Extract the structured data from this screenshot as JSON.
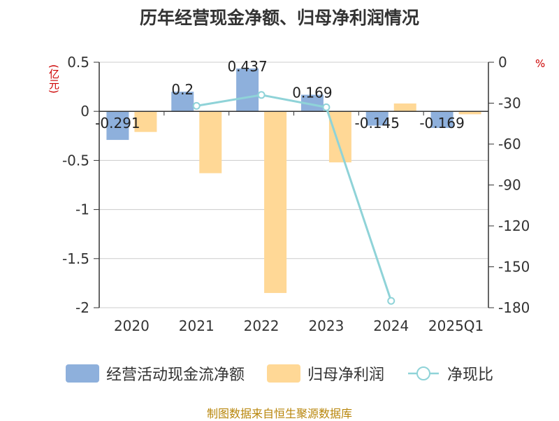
{
  "title": "历年经营现金净额、归母净利润情况",
  "source": "制图数据来自恒生聚源数据库",
  "chart_data": {
    "type": "bar",
    "title": "历年经营现金净额、归母净利润情况",
    "categories": [
      "2020",
      "2021",
      "2022",
      "2023",
      "2024",
      "2025Q1"
    ],
    "left_axis": {
      "unit": "(亿元)",
      "ylim": [
        -2,
        0.5
      ],
      "ticks": [
        0.5,
        0,
        -0.5,
        -1,
        -1.5,
        -2
      ],
      "tick_labels": [
        "0.5",
        "0",
        "-0.5",
        "-1",
        "-1.5",
        "-2"
      ]
    },
    "right_axis": {
      "unit": "%",
      "ylim": [
        -180,
        0
      ],
      "ticks": [
        0,
        -30,
        -60,
        -90,
        -120,
        -150,
        -180
      ],
      "tick_labels": [
        "0",
        "-30",
        "-60",
        "-90",
        "-120",
        "-150",
        "-180"
      ]
    },
    "grid": true,
    "legend_position": "bottom",
    "series": [
      {
        "name": "经营活动现金流净额",
        "type": "bar",
        "axis": "left",
        "color": "#8eb0dc",
        "values": [
          -0.291,
          0.2,
          0.437,
          0.169,
          -0.145,
          -0.169
        ],
        "labels": [
          "-0.291",
          "0.2",
          "0.437",
          "0.169",
          "-0.145",
          "-0.169"
        ]
      },
      {
        "name": "归母净利润",
        "type": "bar",
        "axis": "left",
        "color": "#ffd896",
        "values": [
          -0.21,
          -0.63,
          -1.85,
          -0.52,
          0.08,
          -0.03
        ]
      },
      {
        "name": "净现比",
        "type": "line",
        "axis": "right",
        "color": "#8fd3d8",
        "values": [
          null,
          -32,
          -24,
          -33,
          -175,
          null
        ]
      }
    ]
  }
}
